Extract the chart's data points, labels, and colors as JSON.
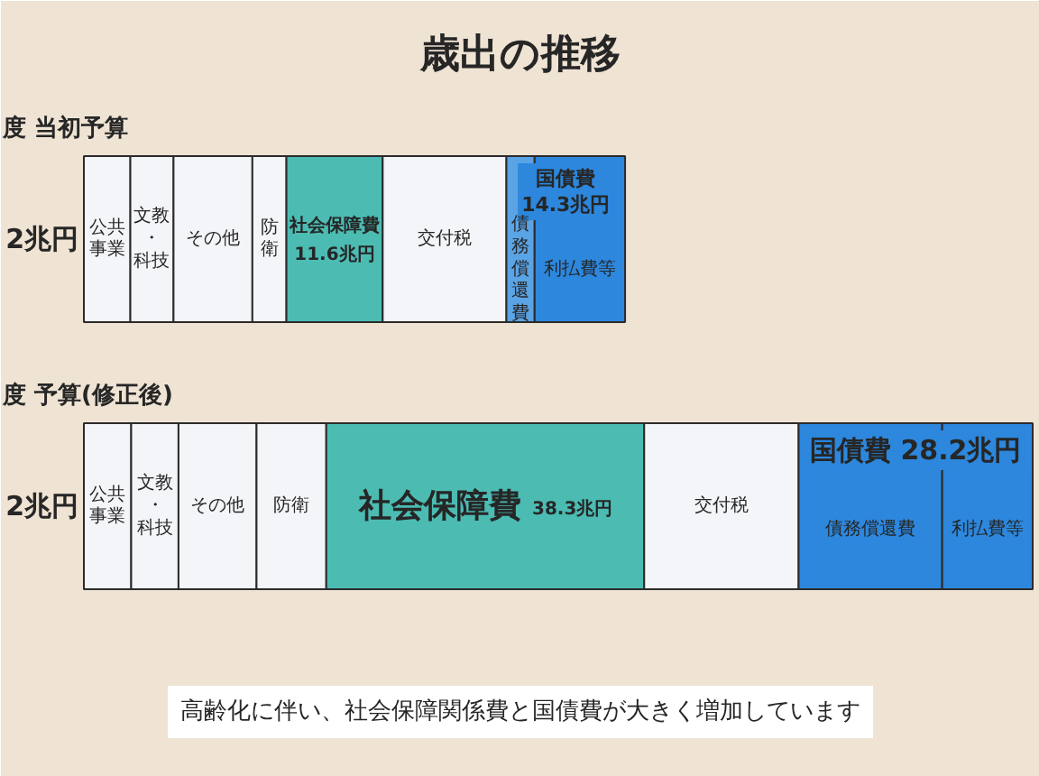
{
  "chart_data": {
    "type": "bar",
    "orientation": "horizontal",
    "stacked": true,
    "title": "歳出の推移",
    "categories": [
      "度 当初予算",
      "度 予算(修正後)"
    ],
    "series": [
      {
        "name": "公共事業",
        "color": "#f4f5f8",
        "values": [
          5.6,
          5.7
        ]
      },
      {
        "name": "文教・科技",
        "color": "#f4f5f8",
        "values": [
          5.2,
          5.7
        ]
      },
      {
        "name": "その他",
        "color": "#f4f5f8",
        "values": [
          9.5,
          9.4
        ]
      },
      {
        "name": "防衛",
        "color": "#f4f5f8",
        "values": [
          4.1,
          8.4
        ]
      },
      {
        "name": "社会保障費",
        "color": "#4cbcb3",
        "values": [
          11.6,
          38.3
        ],
        "value_labels": [
          "11.6兆円",
          "38.3兆円"
        ]
      },
      {
        "name": "交付税",
        "color": "#f4f5f8",
        "values": [
          14.9,
          18.6
        ]
      },
      {
        "name": "債務償還費",
        "colors": [
          "#5aa3e4",
          "#2c87dd"
        ],
        "values": [
          3.4,
          17.3
        ]
      },
      {
        "name": "利払費等",
        "color": "#2c87dd",
        "values": [
          10.9,
          10.9
        ]
      }
    ],
    "annotations": [
      "2兆円",
      "2兆円",
      {
        "text": "国債費 14.3兆円",
        "x": 50.9,
        "y": "度 当初予算"
      },
      {
        "text": "国債費 28.2兆円",
        "x": 86.1,
        "y": "度 予算(修正後)"
      },
      "高齢化に伴い、社会保障関係費と国債費が大きく増加しています"
    ]
  }
}
